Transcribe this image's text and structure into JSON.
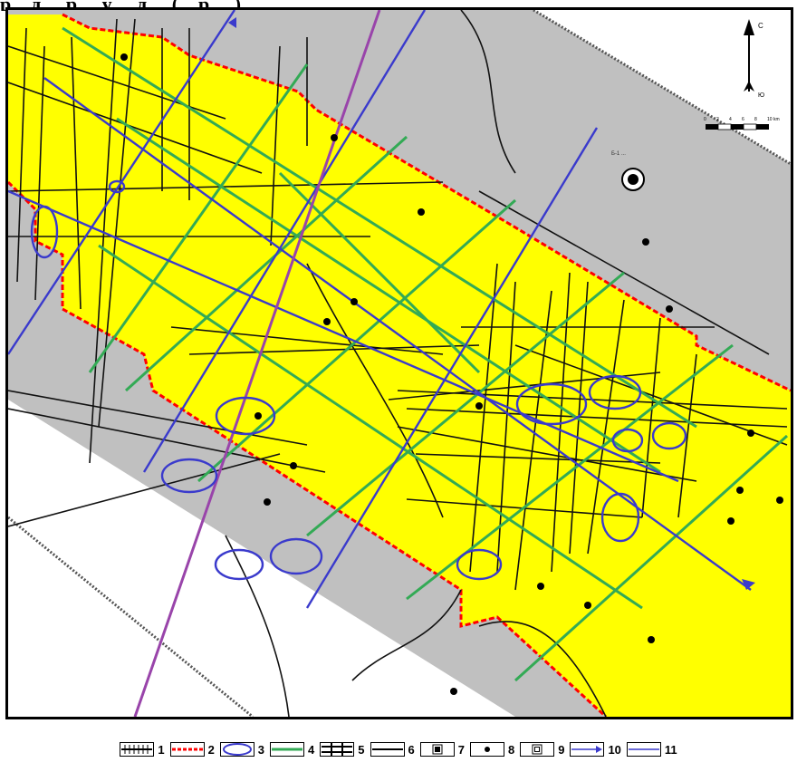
{
  "header": {
    "text": "р ...д ... р ... у ... д ... (... р ... )"
  },
  "compass": {
    "north_label": "С",
    "south_label": "Ю"
  },
  "scale_bar": {
    "ticks": [
      "0",
      "2",
      "4",
      "6",
      "8",
      "10 km"
    ]
  },
  "well_label": "Б-1 ...",
  "map": {
    "colors": {
      "zone": "#ffff00",
      "background": "#c0c0c0",
      "boundary": "#ff0000",
      "anomaly": "#3a3acc",
      "profile_3d": "#33aa55",
      "profile_2d": "#000000",
      "regional": "#3a3acc",
      "regional_alt": "#9944aa"
    }
  },
  "legend": [
    {
      "number": "1",
      "symbol": "hatched-line"
    },
    {
      "number": "2",
      "symbol": "red-dashed-line"
    },
    {
      "number": "3",
      "symbol": "blue-ellipse"
    },
    {
      "number": "4",
      "symbol": "green-line"
    },
    {
      "number": "5",
      "symbol": "grid-lines"
    },
    {
      "number": "6",
      "symbol": "black-line"
    },
    {
      "number": "7",
      "symbol": "square-dot"
    },
    {
      "number": "8",
      "symbol": "dot"
    },
    {
      "number": "9",
      "symbol": "square-ring"
    },
    {
      "number": "10",
      "symbol": "blue-arrow-line"
    },
    {
      "number": "11",
      "symbol": "blue-line"
    }
  ]
}
